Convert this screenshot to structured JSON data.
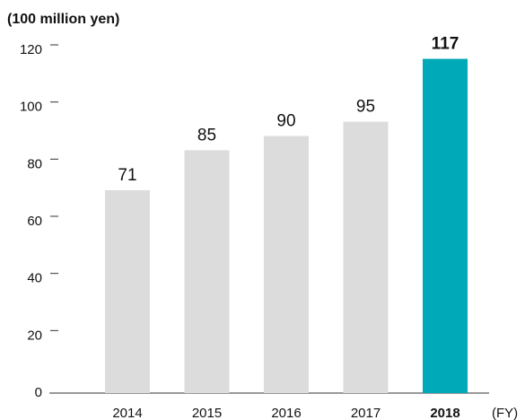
{
  "chart_data": {
    "type": "bar",
    "y_axis_label": "(100 million yen)",
    "x_axis_label": "(FY)",
    "categories": [
      "2014",
      "2015",
      "2016",
      "2017",
      "2018"
    ],
    "values": [
      71,
      85,
      90,
      95,
      117
    ],
    "colors": [
      "#dcdcdc",
      "#dcdcdc",
      "#dcdcdc",
      "#dcdcdc",
      "#00a9b7"
    ],
    "highlight": "2018",
    "ylim": [
      0,
      120
    ],
    "yticks": [
      0,
      20,
      40,
      60,
      80,
      100,
      120
    ],
    "grid": false
  }
}
